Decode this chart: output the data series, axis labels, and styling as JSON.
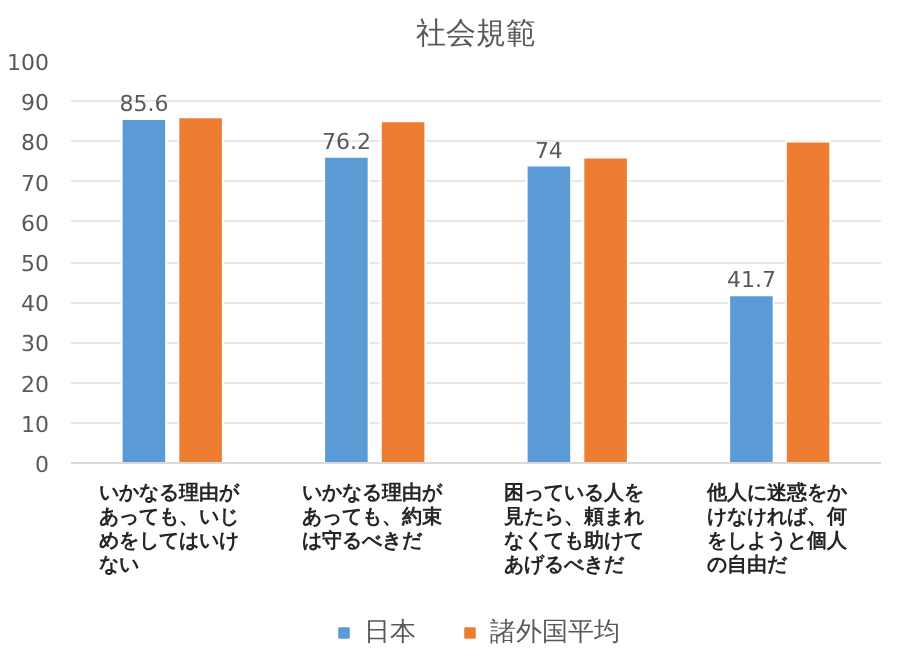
{
  "chart_data": {
    "type": "bar",
    "title": "社会規範",
    "categories": [
      "いかなる理由があっても、いじめをしてはいけない",
      "いかなる理由があっても、約束は守るべきだ",
      "困っている人を見たら、頼まれなくても助けてあげるべきだ",
      "他人に迷惑をかけなければ、何をしようと個人の自由だ"
    ],
    "series": [
      {
        "name": "日本",
        "color": "#5b9bd5",
        "values": [
          85.6,
          76.2,
          74,
          41.7
        ],
        "value_labels": [
          "85.6",
          "76.2",
          "74",
          "41.7"
        ]
      },
      {
        "name": "諸外国平均",
        "color": "#ed7d31",
        "values": [
          86,
          85,
          76,
          80
        ]
      }
    ],
    "ylim": [
      0,
      100
    ],
    "yticks": [
      0,
      10,
      20,
      30,
      40,
      50,
      60,
      70,
      80,
      90,
      100
    ],
    "grid": "y",
    "legend": "bottom"
  }
}
